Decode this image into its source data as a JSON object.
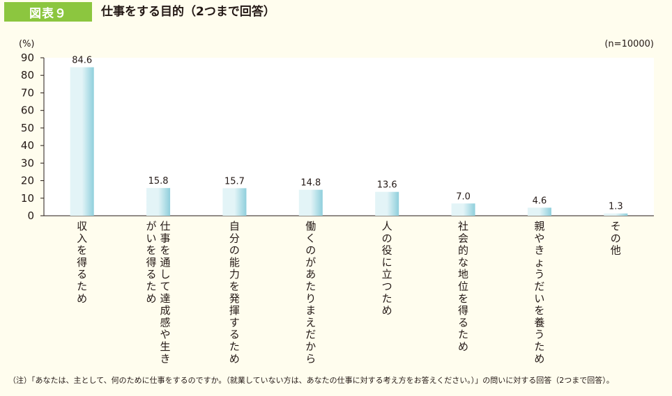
{
  "header": {
    "badge": "図表９",
    "title": "仕事をする目的（2つまで回答）"
  },
  "footnote": "（注）「あなたは、主として、何のために仕事をするのですか。（就業していない方は、あなたの仕事に対する考え方をお答えください。）」の問いに対する回答（2つまで回答）。",
  "colors": {
    "badge": "#8cc63f",
    "bar_light": "#e3f4f7",
    "bar_dark": "#8fcfdc",
    "plot_bg": "#ffffff",
    "page_bg": "#fffdee"
  },
  "chart_data": {
    "type": "bar",
    "unit_label": "(%)",
    "sample_note": "(n=10000)",
    "ylim": [
      0,
      90
    ],
    "yticks": [
      0,
      10,
      20,
      30,
      40,
      50,
      60,
      70,
      80,
      90
    ],
    "grid": false,
    "categories": [
      "収入を得るため",
      "仕事を通して達成感や生きがいを得るため",
      "自分の能力を発揮するため",
      "働くのがあたりまえだから",
      "人の役に立つため",
      "社会的な地位を得るため",
      "親やきょうだいを養うため",
      "その他"
    ],
    "category_lines": [
      [
        "収入を得るため"
      ],
      [
        "仕事を通して達成感や生き",
        "がいを得るため"
      ],
      [
        "自分の能力を発揮するため"
      ],
      [
        "働くのがあたりまえだから"
      ],
      [
        "人の役に立つため"
      ],
      [
        "社会的な地位を得るため"
      ],
      [
        "親やきょうだいを養うため"
      ],
      [
        "その他"
      ]
    ],
    "values": [
      84.6,
      15.8,
      15.7,
      14.8,
      13.6,
      7.0,
      4.6,
      1.3
    ],
    "value_labels": [
      "84.6",
      "15.8",
      "15.7",
      "14.8",
      "13.6",
      "7.0",
      "4.6",
      "1.3"
    ]
  }
}
